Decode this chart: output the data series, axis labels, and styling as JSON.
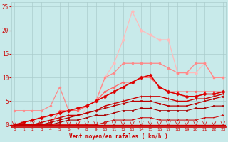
{
  "xlabel": "Vent moyen/en rafales ( km/h )",
  "x": [
    0,
    1,
    2,
    3,
    4,
    5,
    6,
    7,
    8,
    9,
    10,
    11,
    12,
    13,
    14,
    15,
    16,
    17,
    18,
    19,
    20,
    21,
    22,
    23
  ],
  "background_color": "#c8eaea",
  "grid_color": "#aacccc",
  "ylim": [
    -0.5,
    26
  ],
  "yticks": [
    0,
    5,
    10,
    15,
    20,
    25
  ],
  "xticks": [
    0,
    1,
    2,
    3,
    4,
    5,
    6,
    7,
    8,
    9,
    10,
    11,
    12,
    13,
    14,
    15,
    16,
    17,
    18,
    19,
    20,
    21,
    22,
    23
  ],
  "series": [
    {
      "y": [
        0,
        0,
        0,
        0,
        0,
        0,
        0,
        0,
        4,
        5,
        10,
        13,
        18,
        24,
        20,
        19,
        18,
        18,
        11,
        11,
        11,
        13,
        10,
        10
      ],
      "color": "#ffbbbb",
      "lw": 0.9,
      "marker": "o",
      "ms": 2.5
    },
    {
      "y": [
        3,
        3,
        3,
        3,
        4,
        8,
        3,
        3,
        4,
        5,
        10,
        11,
        13,
        13,
        13,
        13,
        13,
        12,
        11,
        11,
        13,
        13,
        10,
        10
      ],
      "color": "#ff8888",
      "lw": 0.9,
      "marker": "o",
      "ms": 2.0
    },
    {
      "y": [
        0,
        0,
        0,
        0,
        0,
        3,
        3,
        3,
        4,
        5,
        7,
        8,
        9,
        9,
        10,
        10,
        8,
        7,
        7,
        7,
        7,
        7,
        7,
        7
      ],
      "color": "#ff6666",
      "lw": 0.9,
      "marker": "o",
      "ms": 2.0
    },
    {
      "y": [
        0,
        0.5,
        1,
        1.5,
        2,
        2.5,
        3,
        3.5,
        4,
        5,
        6,
        7,
        8,
        9,
        10,
        10.5,
        8,
        7,
        6.5,
        6,
        6,
        6.5,
        6.5,
        7
      ],
      "color": "#dd0000",
      "lw": 1.2,
      "marker": "D",
      "ms": 2.5
    },
    {
      "y": [
        0,
        0,
        0,
        0.5,
        1,
        1.5,
        2,
        2,
        2.5,
        3,
        4,
        4.5,
        5,
        5.5,
        6,
        6,
        6,
        5.5,
        5,
        5,
        5.5,
        5.5,
        6,
        6.5
      ],
      "color": "#cc0000",
      "lw": 1.0,
      "marker": "+",
      "ms": 3.0
    },
    {
      "y": [
        0,
        0,
        0,
        0,
        0.5,
        1,
        1.5,
        2,
        2.5,
        3,
        3.5,
        4,
        4.5,
        5,
        5,
        5,
        4.5,
        4,
        4,
        4,
        4.5,
        5,
        5.5,
        6
      ],
      "color": "#bb0000",
      "lw": 0.9,
      "marker": "s",
      "ms": 1.8
    },
    {
      "y": [
        0,
        0,
        0,
        0,
        0,
        0.5,
        1,
        1,
        1.5,
        2,
        2,
        2.5,
        3,
        3,
        3.5,
        3.5,
        3,
        3,
        3,
        3,
        3.5,
        3.5,
        4,
        4
      ],
      "color": "#aa0000",
      "lw": 0.8,
      "marker": "s",
      "ms": 1.5
    },
    {
      "y": [
        0,
        0,
        0,
        0,
        0,
        0,
        0,
        0,
        0,
        0,
        0.5,
        1,
        1,
        1,
        1.5,
        1.5,
        1,
        1,
        1,
        1,
        1,
        1.5,
        1.5,
        2
      ],
      "color": "#cc0000",
      "lw": 0.7,
      "marker": "x",
      "ms": 2.0
    }
  ]
}
